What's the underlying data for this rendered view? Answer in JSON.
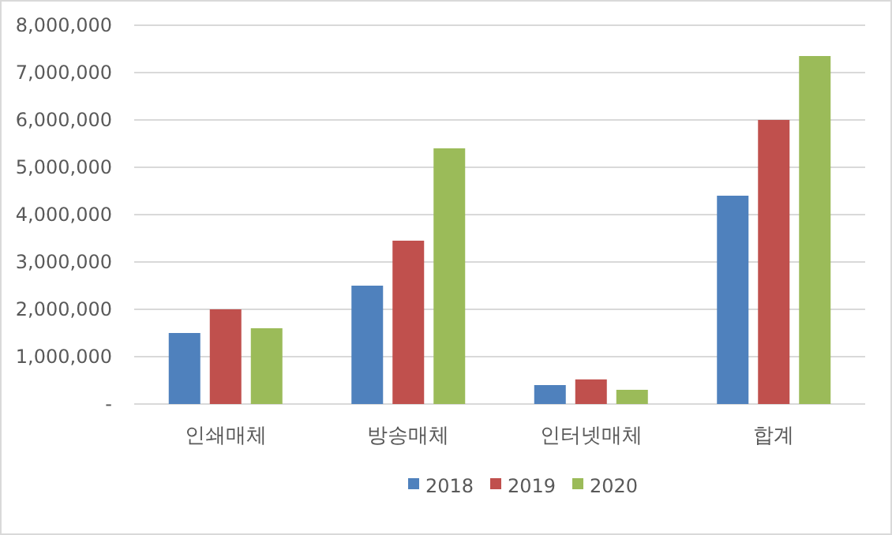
{
  "chart_data": {
    "type": "bar",
    "categories": [
      "인쇄매체",
      "방송매체",
      "인터넷매체",
      "합계"
    ],
    "series": [
      {
        "name": "2018",
        "color": "#4f81bd",
        "values": [
          1500000,
          2500000,
          400000,
          4400000
        ]
      },
      {
        "name": "2019",
        "color": "#c0504d",
        "values": [
          2000000,
          3450000,
          520000,
          6000000
        ]
      },
      {
        "name": "2020",
        "color": "#9bbb59",
        "values": [
          1600000,
          5400000,
          300000,
          7350000
        ]
      }
    ],
    "ylim": [
      0,
      8000000
    ],
    "yticks": [
      {
        "value": 0,
        "label": "-"
      },
      {
        "value": 1000000,
        "label": "1,000,000"
      },
      {
        "value": 2000000,
        "label": "2,000,000"
      },
      {
        "value": 3000000,
        "label": "3,000,000"
      },
      {
        "value": 4000000,
        "label": "4,000,000"
      },
      {
        "value": 5000000,
        "label": "5,000,000"
      },
      {
        "value": 6000000,
        "label": "6,000,000"
      },
      {
        "value": 7000000,
        "label": "7,000,000"
      },
      {
        "value": 8000000,
        "label": "8,000,000"
      }
    ],
    "grid": "y",
    "legend": "bottom"
  }
}
